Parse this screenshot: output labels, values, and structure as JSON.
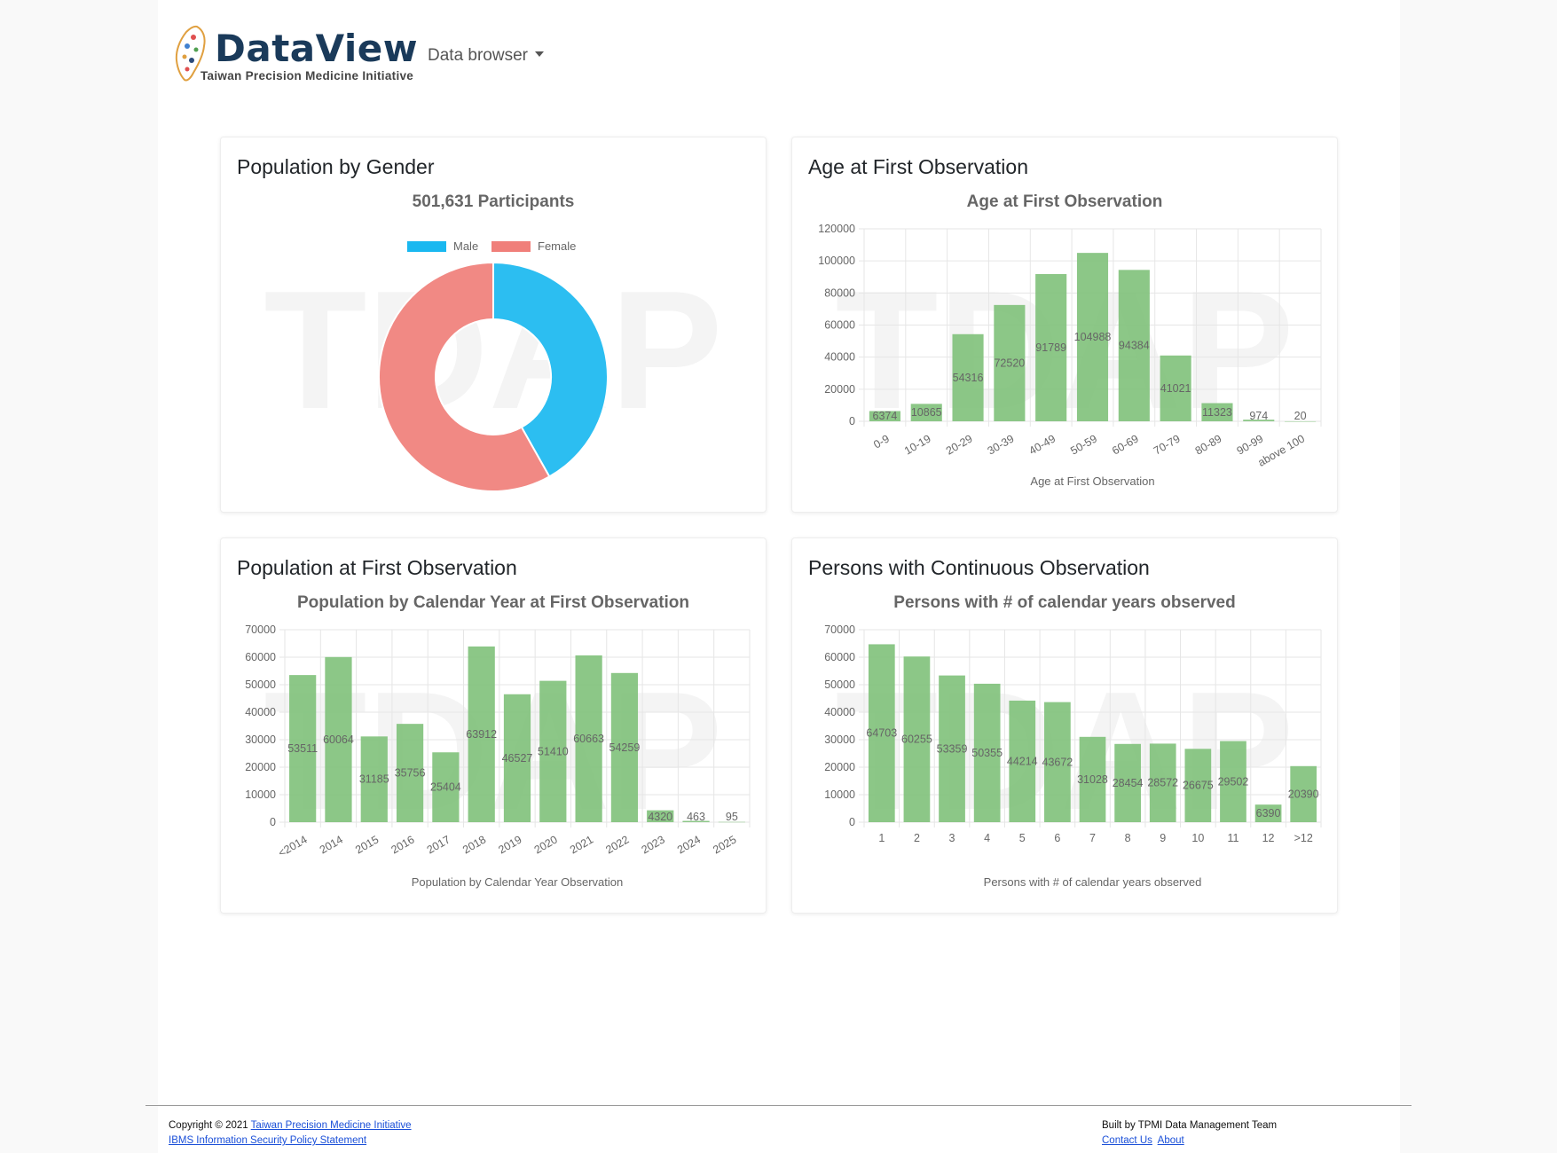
{
  "header": {
    "brand": "DataView",
    "brand_sub": "Taiwan Precision Medicine Initiative",
    "nav_dropdown": "Data browser"
  },
  "watermark": "TDAP",
  "colors": {
    "male": "#1ab8f0",
    "female": "#f07f7a",
    "bar": "#7fc17a",
    "brand": "#1a3a5a"
  },
  "cards": {
    "gender": {
      "title": "Population by Gender",
      "chart_data": {
        "type": "pie",
        "title": "501,631 Participants",
        "legend": [
          "Male",
          "Female"
        ],
        "legend_position": "top",
        "series": [
          {
            "name": "Male",
            "value": 209880
          },
          {
            "name": "Female",
            "value": 291751
          }
        ]
      }
    },
    "age": {
      "title": "Age at First Observation",
      "chart_data": {
        "type": "bar",
        "title": "Age at First Observation",
        "xlabel": "Age at First Observation",
        "ylabel": "",
        "ylim": [
          0,
          120000
        ],
        "yticks": [
          0,
          20000,
          40000,
          60000,
          80000,
          100000,
          120000
        ],
        "grid": true,
        "categories": [
          "0-9",
          "10-19",
          "20-29",
          "30-39",
          "40-49",
          "50-59",
          "60-69",
          "70-79",
          "80-89",
          "90-99",
          "above 100"
        ],
        "values": [
          6374,
          10865,
          54316,
          72520,
          91789,
          104988,
          94384,
          41021,
          11323,
          974,
          20
        ]
      }
    },
    "year": {
      "title": "Population at First Observation",
      "chart_data": {
        "type": "bar",
        "title": "Population by Calendar Year at First Observation",
        "xlabel": "Population by Calendar Year Observation",
        "ylabel": "",
        "ylim": [
          0,
          70000
        ],
        "yticks": [
          0,
          10000,
          20000,
          30000,
          40000,
          50000,
          60000,
          70000
        ],
        "grid": true,
        "categories": [
          "<2014",
          "2014",
          "2015",
          "2016",
          "2017",
          "2018",
          "2019",
          "2020",
          "2021",
          "2022",
          "2023",
          "2024",
          "2025"
        ],
        "values": [
          53511,
          60064,
          31185,
          35756,
          25404,
          63912,
          46527,
          51410,
          60663,
          54259,
          4320,
          463,
          95
        ]
      }
    },
    "continuous": {
      "title": "Persons with Continuous Observation",
      "chart_data": {
        "type": "bar",
        "title": "Persons with # of calendar years observed",
        "xlabel": "Persons with # of calendar years observed",
        "ylabel": "",
        "ylim": [
          0,
          70000
        ],
        "yticks": [
          0,
          10000,
          20000,
          30000,
          40000,
          50000,
          60000,
          70000
        ],
        "grid": true,
        "categories": [
          "1",
          "2",
          "3",
          "4",
          "5",
          "6",
          "7",
          "8",
          "9",
          "10",
          "11",
          "12",
          ">12"
        ],
        "values": [
          64703,
          60255,
          53359,
          50355,
          44214,
          43672,
          31028,
          28454,
          28572,
          26675,
          29502,
          6390,
          20390
        ]
      }
    }
  },
  "footer": {
    "copyright_prefix": "Copyright © 2021",
    "tpmi_link": "Taiwan Precision Medicine Initiative",
    "policy_link": "IBMS Information Security Policy Statement",
    "built_by": "Built by TPMI Data Management Team",
    "contact_link": "Contact Us",
    "about_link": "About"
  }
}
